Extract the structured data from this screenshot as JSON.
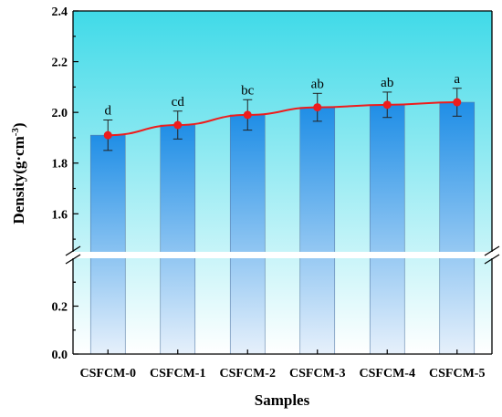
{
  "chart_data": {
    "type": "bar",
    "xlabel": "Samples",
    "ylabel": {
      "main": "Density(g·cm",
      "sup": "-3",
      "close": ")"
    },
    "categories": [
      "CSFCM-0",
      "CSFCM-1",
      "CSFCM-2",
      "CSFCM-3",
      "CSFCM-4",
      "CSFCM-5"
    ],
    "values": [
      1.91,
      1.95,
      1.99,
      2.02,
      2.03,
      2.04
    ],
    "errors": [
      0.06,
      0.055,
      0.06,
      0.055,
      0.05,
      0.055
    ],
    "significance_letters": [
      "d",
      "cd",
      "bc",
      "ab",
      "ab",
      "a"
    ],
    "line_overlay": {
      "type": "line",
      "marker": "circle",
      "color": "#ee1c1c",
      "values": [
        1.91,
        1.95,
        1.99,
        2.02,
        2.03,
        2.04
      ]
    },
    "broken_y_axis": true,
    "y_lower_segment": {
      "ylim": [
        0.0,
        0.4
      ],
      "ticks": [
        "0.0",
        "0.2"
      ]
    },
    "y_upper_segment": {
      "ylim": [
        1.45,
        2.4
      ],
      "ticks": [
        "1.6",
        "1.8",
        "2.0",
        "2.2",
        "2.4"
      ]
    },
    "colors": {
      "bar_top": "#1f8ee6",
      "bar_bottom": "#e6f0fb",
      "background_top": "#40dae8",
      "background_bottom": "#ffffff",
      "line": "#ee1c1c"
    },
    "grid": false,
    "legend": "none"
  }
}
